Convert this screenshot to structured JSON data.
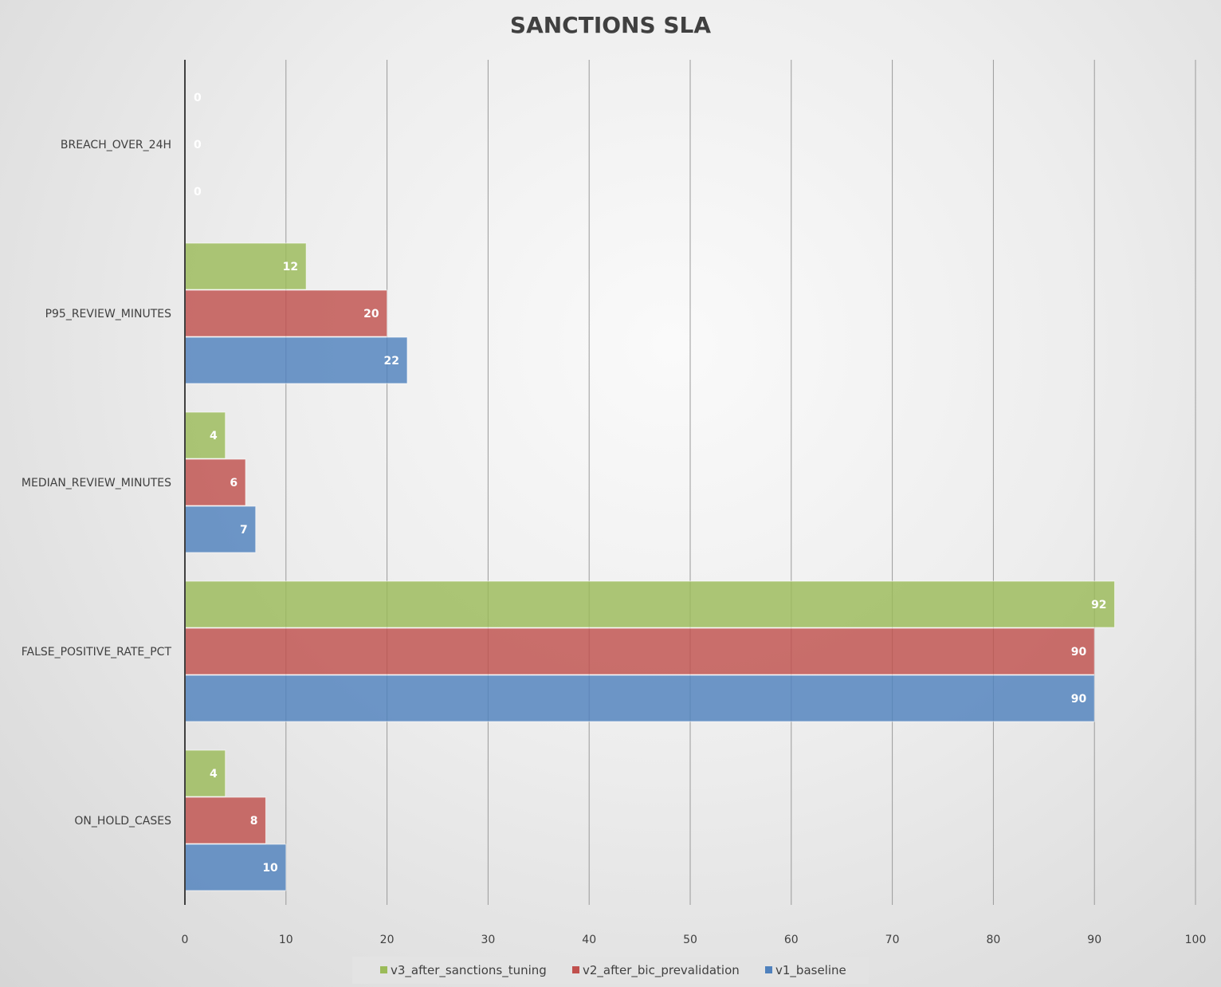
{
  "chart_data": {
    "type": "bar",
    "orientation": "horizontal",
    "title": "SANCTIONS SLA",
    "categories": [
      "BREACH_OVER_24H",
      "P95_REVIEW_MINUTES",
      "MEDIAN_REVIEW_MINUTES",
      "FALSE_POSITIVE_RATE_PCT",
      "ON_HOLD_CASES"
    ],
    "series": [
      {
        "name": "v3_after_sanctions_tuning",
        "color": "#9bbb59",
        "values": [
          0,
          12,
          4,
          92,
          4
        ]
      },
      {
        "name": "v2_after_bic_prevalidation",
        "color": "#c0504d",
        "values": [
          0,
          20,
          6,
          90,
          8
        ]
      },
      {
        "name": "v1_baseline",
        "color": "#4f81bd",
        "values": [
          0,
          22,
          7,
          90,
          10
        ]
      }
    ],
    "xlim": [
      0,
      100
    ],
    "xticks": [
      0,
      10,
      20,
      30,
      40,
      50,
      60,
      70,
      80,
      90,
      100
    ],
    "grid": true,
    "data_labels": true,
    "legend_position": "bottom"
  }
}
